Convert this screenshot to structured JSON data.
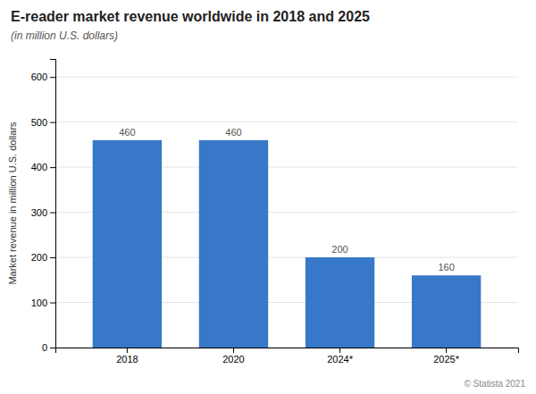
{
  "chart_data": {
    "type": "bar",
    "title": "E-reader market revenue worldwide in 2018 and 2025",
    "subtitle": "(in million U.S. dollars)",
    "ylabel": "Market revenue in million U.S. dollars",
    "categories": [
      "2018",
      "2020",
      "2024*",
      "2025*"
    ],
    "values": [
      460,
      460,
      200,
      160
    ],
    "color": "#3878c8",
    "ylim": [
      0,
      640
    ],
    "yticks": [
      0,
      100,
      200,
      300,
      400,
      500,
      600
    ],
    "grid": true,
    "data_labels": true,
    "annotations": [
      "© Statista 2021"
    ]
  }
}
